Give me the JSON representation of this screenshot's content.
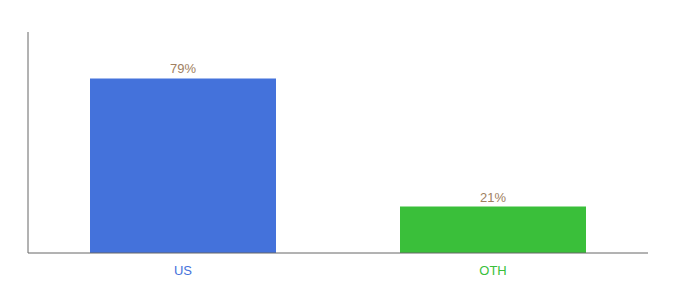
{
  "chart_data": {
    "type": "bar",
    "categories": [
      "US",
      "OTH"
    ],
    "values": [
      79,
      21
    ],
    "value_labels": [
      "79%",
      "21%"
    ],
    "data_labels": true,
    "colors": [
      "#4472db",
      "#3abf3a"
    ],
    "ylim": [
      0,
      100
    ],
    "tick_labels": "x"
  }
}
